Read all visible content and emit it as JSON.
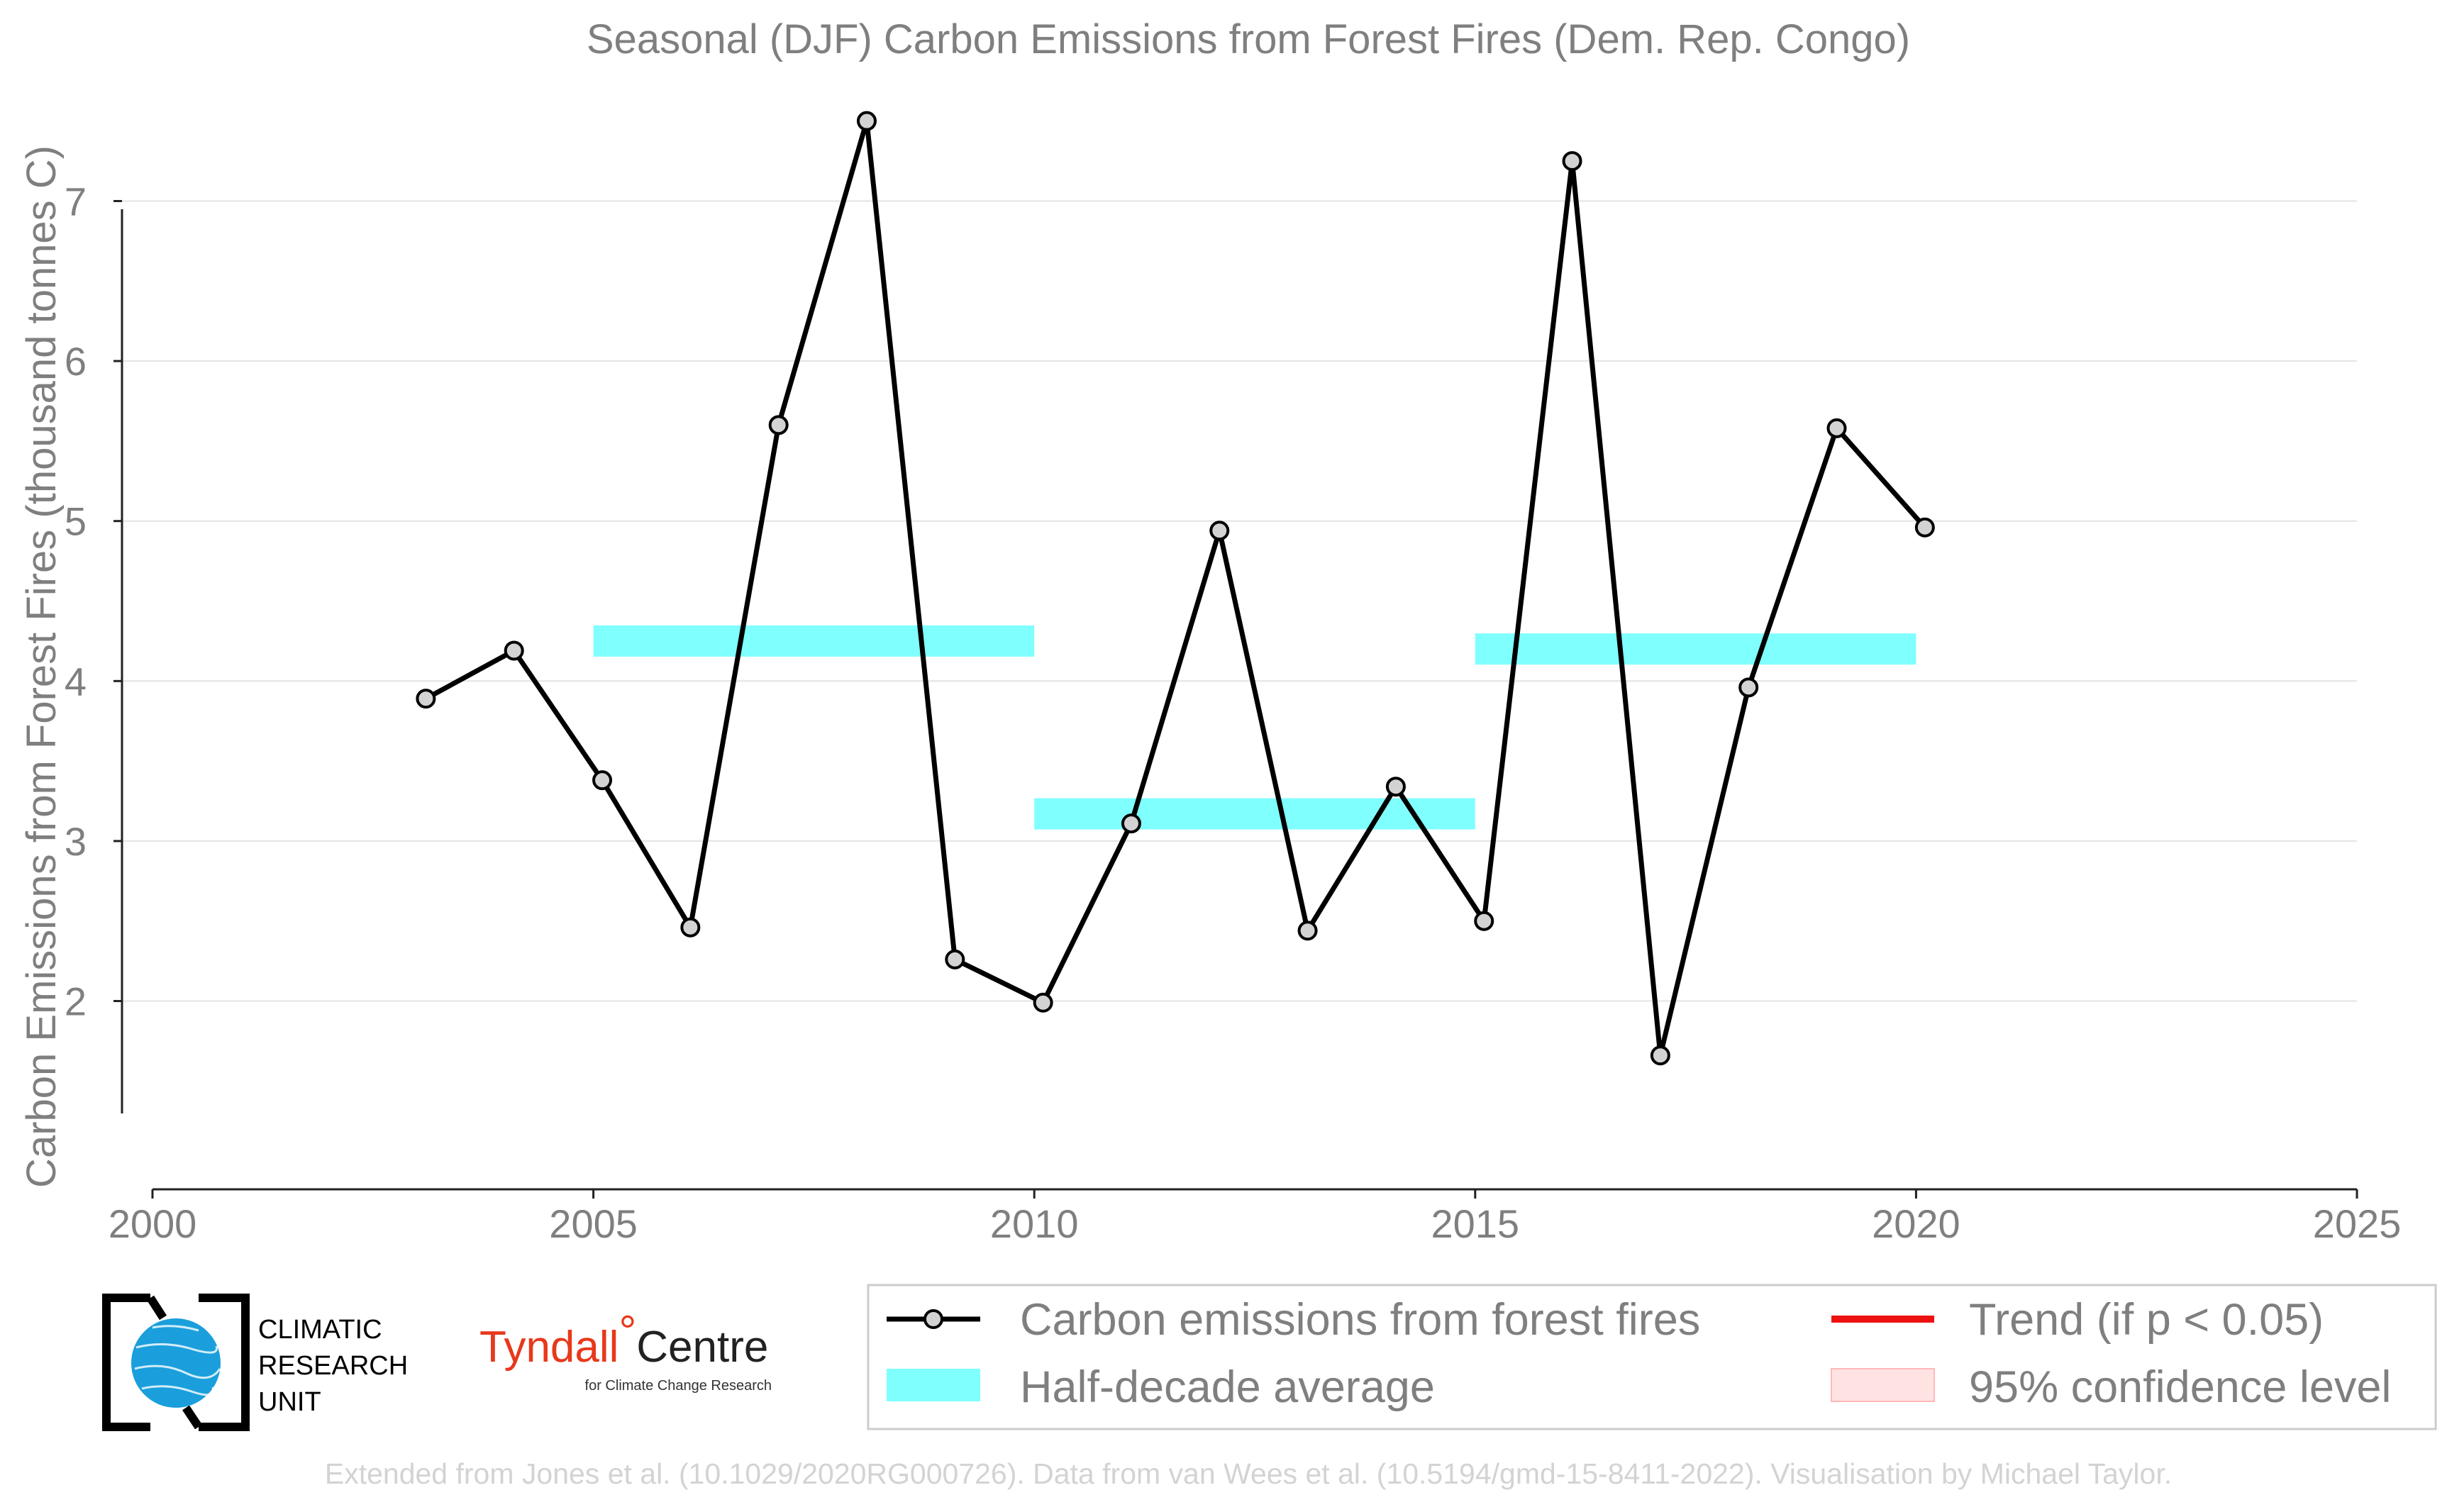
{
  "chart_data": {
    "type": "line",
    "title": "Seasonal (DJF) Carbon Emissions from Forest Fires (Dem. Rep. Congo)",
    "xlabel": "",
    "ylabel": "Carbon Emissions from Forest Fires (thousand tonnes C)",
    "xlim": [
      2000,
      2025
    ],
    "ylim": [
      1.2,
      7.8
    ],
    "x_ticks": [
      "2000",
      "2005",
      "2010",
      "2015",
      "2020",
      "2025"
    ],
    "y_ticks": [
      "2",
      "3",
      "4",
      "5",
      "6",
      "7"
    ],
    "grid": "horizontal",
    "legend_position": "bottom-right",
    "series": [
      {
        "name": "Carbon emissions from forest fires",
        "color": "#000000",
        "x": [
          2003,
          2004,
          2005,
          2006,
          2007,
          2008,
          2009,
          2010,
          2011,
          2012,
          2013,
          2014,
          2015,
          2016,
          2017,
          2018,
          2019,
          2020
        ],
        "values": [
          3.89,
          4.19,
          3.38,
          2.46,
          5.6,
          7.5,
          2.26,
          1.99,
          3.11,
          4.94,
          2.44,
          3.34,
          2.5,
          7.25,
          1.66,
          3.96,
          5.58,
          4.96
        ]
      }
    ],
    "half_decade_average": {
      "name": "Half-decade average",
      "color": "#80ffff",
      "segments": [
        {
          "start": 2005,
          "end": 2010,
          "value": 4.25
        },
        {
          "start": 2010,
          "end": 2015,
          "value": 3.17
        },
        {
          "start": 2015,
          "end": 2020,
          "value": 4.2
        }
      ]
    },
    "legend": [
      {
        "label": "Carbon emissions from forest fires",
        "kind": "line-marker",
        "color": "#000000"
      },
      {
        "label": "Trend (if p < 0.05)",
        "kind": "line",
        "color": "#ee1111"
      },
      {
        "label": "Half-decade average",
        "kind": "band",
        "color": "#80ffff"
      },
      {
        "label": "95% confidence level",
        "kind": "patch",
        "color": "#ffe3e3"
      }
    ]
  },
  "logos": {
    "cru": {
      "line1": "CLIMATIC",
      "line2": "RESEARCH",
      "line3": "UNIT",
      "icon": "globe-icon"
    },
    "tyndall": {
      "name": "Tyndall",
      "degree": "°",
      "centre": "Centre",
      "subtitle": "for Climate Change Research"
    }
  },
  "credit": "Extended from Jones et al. (10.1029/2020RG000726). Data from van Wees et al. (10.5194/gmd-15-8411-2022). Visualisation by Michael Taylor."
}
